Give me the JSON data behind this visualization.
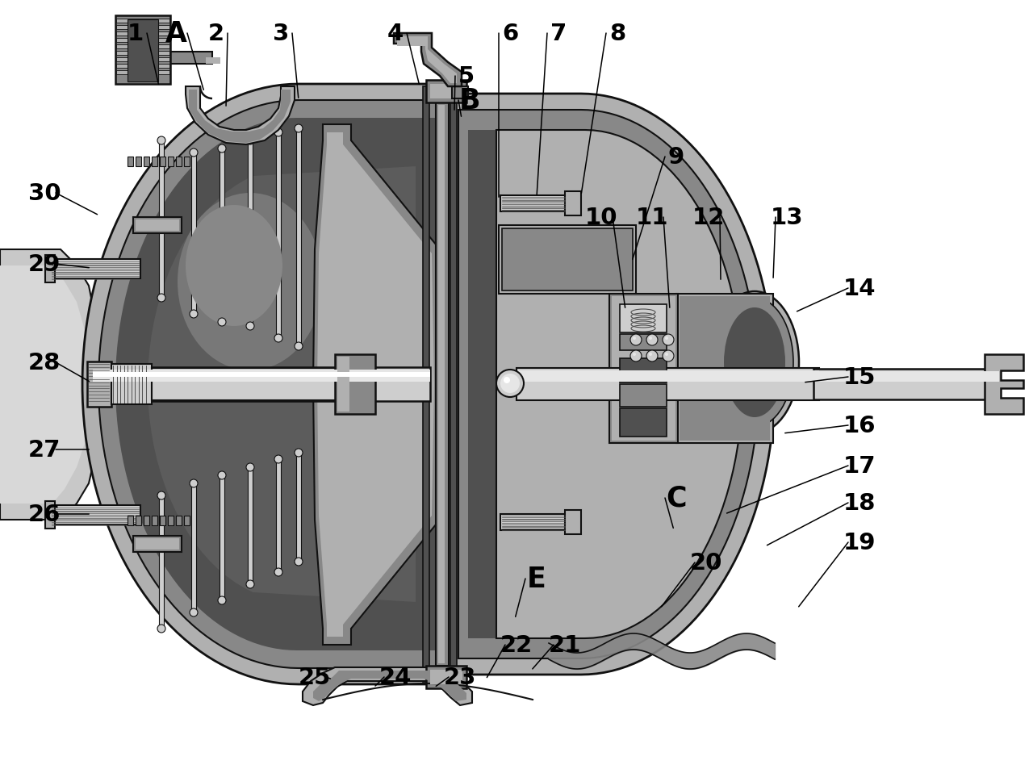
{
  "bg": "#ffffff",
  "C_o": "#111111",
  "C_dark": "#505050",
  "C_mid": "#888888",
  "C_light": "#b0b0b0",
  "C_vlight": "#cecece",
  "C_white": "#e6e6e6",
  "labels": [
    [
      "1",
      168,
      42,
      197,
      108
    ],
    [
      "A",
      218,
      42,
      253,
      115
    ],
    [
      "2",
      268,
      42,
      280,
      135
    ],
    [
      "3",
      348,
      42,
      370,
      125
    ],
    [
      "4",
      490,
      42,
      520,
      108
    ],
    [
      "5",
      578,
      95,
      563,
      140
    ],
    [
      "B",
      582,
      125,
      572,
      148
    ],
    [
      "6",
      632,
      42,
      618,
      248
    ],
    [
      "7",
      692,
      42,
      665,
      245
    ],
    [
      "8",
      765,
      42,
      720,
      243
    ],
    [
      "9",
      838,
      195,
      783,
      325
    ],
    [
      "10",
      745,
      270,
      775,
      385
    ],
    [
      "11",
      808,
      270,
      830,
      385
    ],
    [
      "12",
      878,
      270,
      893,
      350
    ],
    [
      "13",
      975,
      270,
      958,
      348
    ],
    [
      "14",
      1065,
      358,
      985,
      388
    ],
    [
      "15",
      1065,
      468,
      995,
      475
    ],
    [
      "16",
      1065,
      528,
      970,
      538
    ],
    [
      "17",
      1065,
      578,
      898,
      638
    ],
    [
      "18",
      1065,
      624,
      948,
      678
    ],
    [
      "19",
      1065,
      673,
      988,
      755
    ],
    [
      "20",
      875,
      698,
      818,
      755
    ],
    [
      "C",
      838,
      618,
      835,
      658
    ],
    [
      "E",
      665,
      718,
      638,
      768
    ],
    [
      "21",
      700,
      800,
      658,
      832
    ],
    [
      "22",
      640,
      800,
      602,
      843
    ],
    [
      "23",
      570,
      840,
      538,
      853
    ],
    [
      "24",
      490,
      840,
      463,
      853
    ],
    [
      "25",
      390,
      840,
      412,
      843
    ],
    [
      "26",
      55,
      638,
      113,
      638
    ],
    [
      "27",
      55,
      558,
      113,
      558
    ],
    [
      "28",
      55,
      450,
      113,
      475
    ],
    [
      "29",
      55,
      328,
      113,
      333
    ],
    [
      "30",
      55,
      240,
      123,
      268
    ]
  ],
  "letter_labels": [
    "A",
    "B",
    "C",
    "E"
  ],
  "fs_num": 21,
  "fs_let": 25
}
